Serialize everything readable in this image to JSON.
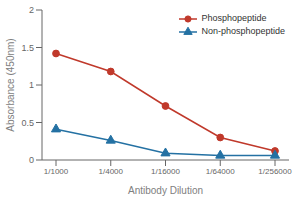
{
  "chart_data": {
    "type": "line",
    "xlabel": "Antibody Dilution",
    "ylabel": "Absorbance (450nm)",
    "categories": [
      "1/1000",
      "1/4000",
      "1/16000",
      "1/64000",
      "1/256000"
    ],
    "series": [
      {
        "name": "Phosphopeptide",
        "color": "#c0392b",
        "marker": "circle",
        "values": [
          1.42,
          1.18,
          0.72,
          0.3,
          0.12
        ]
      },
      {
        "name": "Non-phosphopeptide",
        "color": "#2471a3",
        "marker": "triangle",
        "values": [
          0.41,
          0.26,
          0.09,
          0.06,
          0.06
        ]
      }
    ],
    "ylim": [
      0,
      2.0
    ],
    "yticks": [
      0,
      0.5,
      1,
      1.5,
      2
    ],
    "grid": false,
    "legend": "upper right"
  }
}
